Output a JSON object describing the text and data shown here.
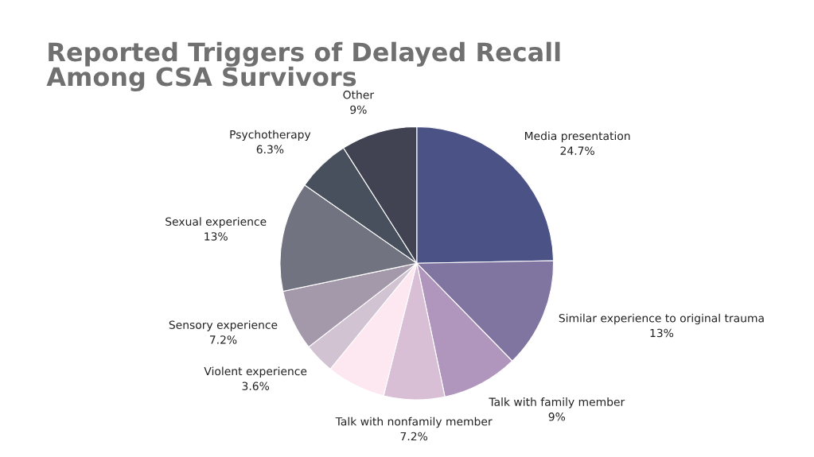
{
  "chart_data": {
    "type": "pie",
    "title": "Reported Triggers of Delayed Recall\nAmong CSA Survivors",
    "categories": [
      "Media presentation",
      "Similar experience to original trauma",
      "Talk with family member",
      "Talk with nonfamily member",
      null,
      "Violent experience",
      "Sensory experience",
      "Sexual experience",
      "Psychotherapy",
      "Other"
    ],
    "values": [
      24.7,
      13,
      9,
      7.2,
      7,
      3.6,
      7.2,
      13,
      6.3,
      9
    ],
    "value_labels": [
      "24.7%",
      "13%",
      "9%",
      "7.2%",
      null,
      "3.6%",
      "7.2%",
      "13%",
      "6.3%",
      "9%"
    ],
    "colors": [
      "#4a5286",
      "#8075a0",
      "#b096bd",
      "#d8bfd6",
      "#fde8f1",
      "#d2c3d3",
      "#a399aa",
      "#717480",
      "#47505c",
      "#414352"
    ],
    "legend": false
  }
}
